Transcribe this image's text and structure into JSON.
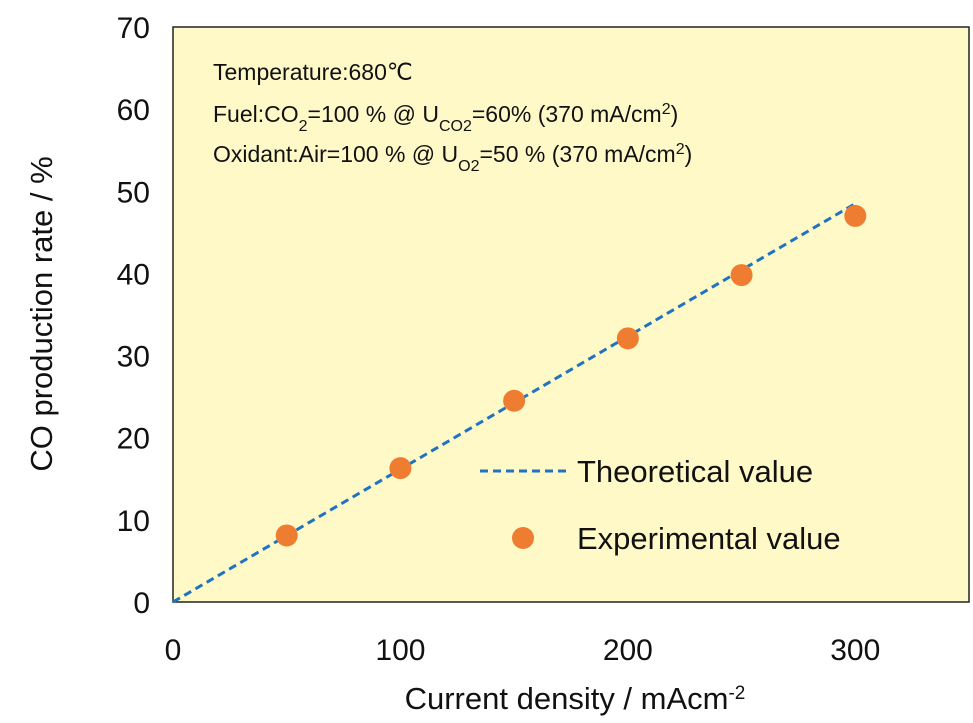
{
  "chart_data": {
    "type": "scatter",
    "xlabel": "Current density / mAcm",
    "xlabel_sup": "-2",
    "ylabel": "CO production rate / %",
    "xlim": [
      0,
      350
    ],
    "ylim": [
      0,
      70
    ],
    "xticks": [
      0,
      100,
      200,
      300
    ],
    "yticks": [
      0,
      10,
      20,
      30,
      40,
      50,
      60,
      70
    ],
    "grid": false,
    "plot_background": "#fff9c8",
    "legend_position": "bottom-right",
    "annotations": {
      "line1": "Temperature:680℃",
      "line2": [
        "Fuel:CO",
        "2",
        "=100 % @ U",
        "CO2",
        "=60% (370 mA/cm",
        "2",
        ")"
      ],
      "line3": [
        "Oxidant:Air=100 % @ U",
        "O2",
        "=50 % (370 mA/cm",
        "2",
        ")"
      ]
    },
    "series": [
      {
        "name": "Theoretical value",
        "style": "dashed-line",
        "color": "#1f73c0",
        "x": [
          0,
          300
        ],
        "y": [
          0,
          48.5
        ]
      },
      {
        "name": "Experimental value",
        "style": "markers",
        "color": "#ee7d31",
        "x": [
          50,
          100,
          150,
          200,
          250,
          300
        ],
        "y": [
          8.1,
          16.3,
          24.5,
          32.1,
          39.8,
          47.0
        ]
      }
    ]
  }
}
